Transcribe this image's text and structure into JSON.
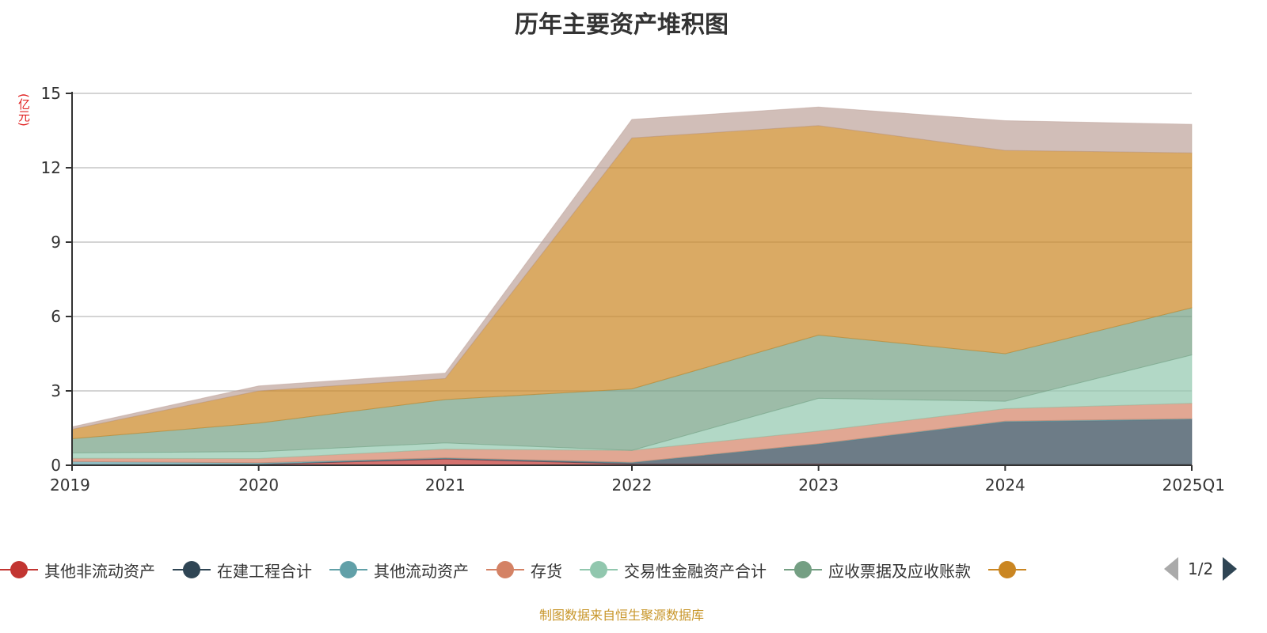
{
  "chart_data": {
    "type": "area",
    "stacked": true,
    "title": "历年主要资产堆积图",
    "ylabel": "(亿元)",
    "xlabel": "",
    "x": [
      "2019",
      "2020",
      "2021",
      "2022",
      "2023",
      "2024",
      "2025Q1"
    ],
    "ylim": [
      0,
      15
    ],
    "yticks": [
      0,
      3,
      6,
      9,
      12,
      15
    ],
    "grid": true,
    "legend_placement": "bottom",
    "legend_page": "1/2",
    "series": [
      {
        "name": "其他非流动资产",
        "color": "#c23531",
        "values": [
          0.02,
          0.03,
          0.25,
          0.05,
          0.05,
          0.03,
          0.03
        ]
      },
      {
        "name": "在建工程合计",
        "color": "#2f4554",
        "values": [
          0.0,
          0.02,
          0.03,
          0.05,
          0.8,
          1.72,
          1.82
        ]
      },
      {
        "name": "其他流动资产",
        "color": "#61a0a8",
        "values": [
          0.13,
          0.05,
          0.02,
          0.02,
          0.02,
          0.03,
          0.03
        ]
      },
      {
        "name": "存货",
        "color": "#d48265",
        "values": [
          0.13,
          0.17,
          0.35,
          0.48,
          0.51,
          0.5,
          0.62
        ]
      },
      {
        "name": "交易性金融资产合计",
        "color": "#91c7ae",
        "values": [
          0.22,
          0.28,
          0.25,
          0.0,
          1.32,
          0.3,
          1.95
        ]
      },
      {
        "name": "应收票据及应收账款",
        "color": "#749f83",
        "values": [
          0.57,
          1.15,
          1.75,
          2.48,
          2.55,
          1.92,
          1.9
        ]
      },
      {
        "name": "",
        "color": "#ca8622",
        "values": [
          0.38,
          1.3,
          0.85,
          10.12,
          8.45,
          8.2,
          6.25
        ]
      },
      {
        "name": "",
        "color": "#bda29a",
        "values": [
          0.1,
          0.2,
          0.22,
          0.75,
          0.75,
          1.2,
          1.15
        ]
      }
    ]
  },
  "source": "制图数据来自恒生聚源数据库"
}
